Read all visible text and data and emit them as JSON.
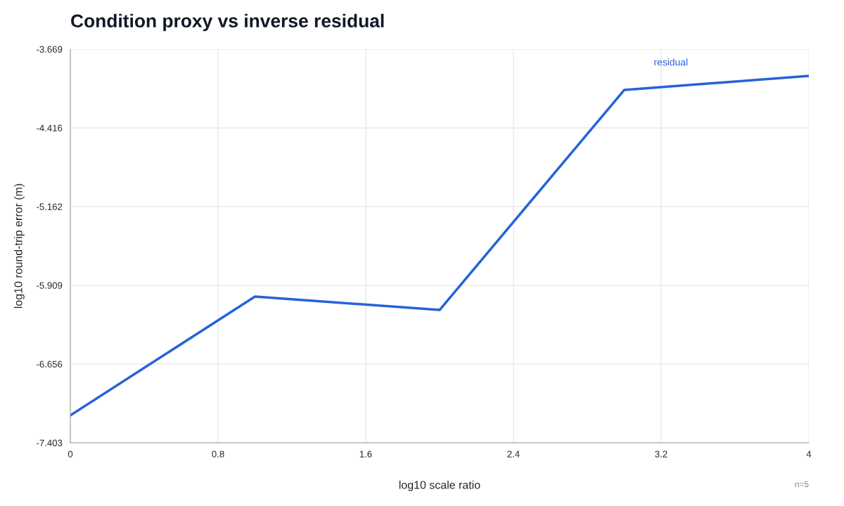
{
  "chart_data": {
    "type": "line",
    "title": "Condition proxy vs inverse residual",
    "xlabel": "log10 scale ratio",
    "ylabel": "log10 round-trip error (m)",
    "x": [
      0,
      1,
      2,
      3,
      4
    ],
    "series": [
      {
        "name": "residual",
        "color": "#2563d9",
        "values": [
          -7.143,
          -6.016,
          -6.143,
          -4.056,
          -3.922
        ]
      }
    ],
    "xlim": [
      0,
      4
    ],
    "xticks": [
      0,
      0.8,
      1.6,
      2.4,
      3.2,
      4
    ],
    "ylim": [
      -7.403,
      -3.669
    ],
    "yticks": [
      -7.403,
      -6.656,
      -5.909,
      -5.162,
      -4.416,
      -3.669
    ],
    "grid": true,
    "marker": "none",
    "line_style": "solid",
    "annotations": [
      "n=5"
    ]
  }
}
